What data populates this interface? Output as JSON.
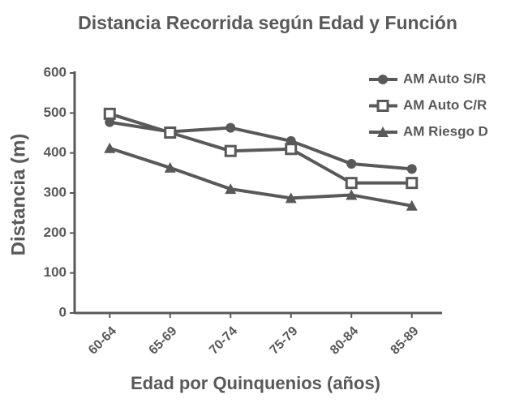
{
  "chart_data": {
    "type": "line",
    "title": "Distancia Recorrida según Edad y Función",
    "x_label": "Edad por Quinquenios (años)",
    "y_label": "Distancia (m)",
    "categories": [
      "60-64",
      "65-69",
      "70-74",
      "75-79",
      "80-84",
      "85-89"
    ],
    "series": [
      {
        "name": "AM Auto S/R",
        "color": "#595959",
        "marker": "circle",
        "values": [
          477,
          453,
          463,
          430,
          373,
          360
        ]
      },
      {
        "name": "AM Auto C/R",
        "color": "#595959",
        "marker": "square",
        "values": [
          498,
          451,
          405,
          410,
          325,
          325
        ]
      },
      {
        "name": "AM Riesgo D",
        "color": "#595959",
        "marker": "triangle",
        "values": [
          412,
          363,
          310,
          287,
          295,
          268
        ]
      }
    ],
    "ylim": [
      0,
      600
    ],
    "yticks": [
      0,
      100,
      200,
      300,
      400,
      500,
      600
    ],
    "grid": false,
    "legend": "top-right"
  }
}
